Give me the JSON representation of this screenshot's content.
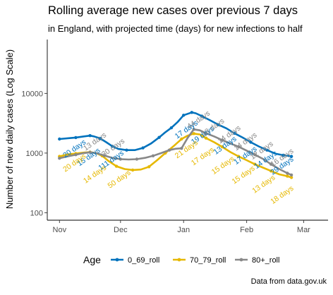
{
  "chart_data": {
    "type": "line",
    "title": "Rolling average new cases over previous 7 days",
    "subtitle": "in England, with projected time (days) for new infections to half",
    "ylabel": "Number of new daily cases (Log Scale)",
    "xlabel": "",
    "y_scale": "log",
    "ylim": [
      75,
      80000
    ],
    "y_ticks": [
      100,
      1000,
      10000
    ],
    "y_tick_labels": [
      "100",
      "1000",
      "10000"
    ],
    "x_ticks": [
      0,
      30,
      61,
      92,
      120
    ],
    "x_tick_labels": [
      "Nov",
      "Dec",
      "Jan",
      "Feb",
      "Mar"
    ],
    "xlim": [
      -6,
      132
    ],
    "grid": false,
    "legend": {
      "title": "Age",
      "position": "bottom"
    },
    "caption": "Data from data.gov.uk",
    "series": [
      {
        "name": "0_69_roll",
        "color": "#0072bd",
        "points": [
          {
            "x": 0,
            "y": 1720
          },
          {
            "x": 5,
            "y": 1780
          },
          {
            "x": 8,
            "y": 1820
          },
          {
            "x": 12,
            "y": 1900
          },
          {
            "x": 15,
            "y": 1960
          },
          {
            "x": 17,
            "y": 1900
          },
          {
            "x": 20,
            "y": 1760
          },
          {
            "x": 23,
            "y": 1520
          },
          {
            "x": 26,
            "y": 1300
          },
          {
            "x": 29,
            "y": 1170
          },
          {
            "x": 33,
            "y": 1120
          },
          {
            "x": 37,
            "y": 1120
          },
          {
            "x": 41,
            "y": 1220
          },
          {
            "x": 45,
            "y": 1450
          },
          {
            "x": 49,
            "y": 1830
          },
          {
            "x": 52,
            "y": 2230
          },
          {
            "x": 55,
            "y": 2650
          },
          {
            "x": 58,
            "y": 3300
          },
          {
            "x": 61,
            "y": 4300
          },
          {
            "x": 63,
            "y": 4550
          },
          {
            "x": 65,
            "y": 4800
          },
          {
            "x": 67,
            "y": 4650
          },
          {
            "x": 70,
            "y": 4150
          },
          {
            "x": 74,
            "y": 3550
          },
          {
            "x": 78,
            "y": 3000
          },
          {
            "x": 82,
            "y": 2600
          },
          {
            "x": 86,
            "y": 2150
          },
          {
            "x": 90,
            "y": 1820
          },
          {
            "x": 94,
            "y": 1520
          },
          {
            "x": 98,
            "y": 1290
          },
          {
            "x": 102,
            "y": 1120
          },
          {
            "x": 106,
            "y": 980
          },
          {
            "x": 110,
            "y": 920
          },
          {
            "x": 114,
            "y": 880
          }
        ],
        "labels": [
          {
            "x": 8,
            "y": 1100,
            "text": "20 days"
          },
          {
            "x": 15,
            "y": 800,
            "text": "15 days"
          },
          {
            "x": 26,
            "y": 700,
            "text": "111 days"
          },
          {
            "x": 63,
            "y": 2300,
            "text": "17 days"
          },
          {
            "x": 71,
            "y": 1850,
            "text": "19 days"
          },
          {
            "x": 82,
            "y": 1250,
            "text": "13 days"
          },
          {
            "x": 92,
            "y": 850,
            "text": "17 days"
          },
          {
            "x": 102,
            "y": 720,
            "text": "14 days"
          },
          {
            "x": 110,
            "y": 570,
            "text": "29 days"
          }
        ]
      },
      {
        "name": "70_79_roll",
        "color": "#e6b800",
        "points": [
          {
            "x": 0,
            "y": 880
          },
          {
            "x": 4,
            "y": 950
          },
          {
            "x": 8,
            "y": 980
          },
          {
            "x": 12,
            "y": 1020
          },
          {
            "x": 15,
            "y": 1040
          },
          {
            "x": 18,
            "y": 1000
          },
          {
            "x": 21,
            "y": 900
          },
          {
            "x": 24,
            "y": 740
          },
          {
            "x": 28,
            "y": 600
          },
          {
            "x": 32,
            "y": 540
          },
          {
            "x": 36,
            "y": 520
          },
          {
            "x": 40,
            "y": 530
          },
          {
            "x": 44,
            "y": 590
          },
          {
            "x": 48,
            "y": 760
          },
          {
            "x": 52,
            "y": 1000
          },
          {
            "x": 56,
            "y": 1300
          },
          {
            "x": 60,
            "y": 1720
          },
          {
            "x": 63,
            "y": 1960
          },
          {
            "x": 66,
            "y": 2120
          },
          {
            "x": 69,
            "y": 2050
          },
          {
            "x": 72,
            "y": 1780
          },
          {
            "x": 76,
            "y": 1520
          },
          {
            "x": 80,
            "y": 1270
          },
          {
            "x": 84,
            "y": 1040
          },
          {
            "x": 88,
            "y": 880
          },
          {
            "x": 92,
            "y": 760
          },
          {
            "x": 96,
            "y": 650
          },
          {
            "x": 100,
            "y": 570
          },
          {
            "x": 104,
            "y": 500
          },
          {
            "x": 108,
            "y": 440
          },
          {
            "x": 112,
            "y": 410
          },
          {
            "x": 114,
            "y": 390
          }
        ],
        "labels": [
          {
            "x": 8,
            "y": 640,
            "text": "20 days"
          },
          {
            "x": 18,
            "y": 410,
            "text": "14 days"
          },
          {
            "x": 30,
            "y": 340,
            "text": "50 days"
          },
          {
            "x": 63,
            "y": 1080,
            "text": "21 days"
          },
          {
            "x": 71,
            "y": 820,
            "text": "17 days"
          },
          {
            "x": 81,
            "y": 580,
            "text": "15 days"
          },
          {
            "x": 91,
            "y": 400,
            "text": "15 days"
          },
          {
            "x": 101,
            "y": 280,
            "text": "13 days"
          },
          {
            "x": 110,
            "y": 185,
            "text": "18 days"
          }
        ]
      },
      {
        "name": "80+_roll",
        "color": "#888888",
        "points": [
          {
            "x": 0,
            "y": 820
          },
          {
            "x": 4,
            "y": 880
          },
          {
            "x": 8,
            "y": 940
          },
          {
            "x": 12,
            "y": 1000
          },
          {
            "x": 15,
            "y": 1030
          },
          {
            "x": 18,
            "y": 1000
          },
          {
            "x": 22,
            "y": 910
          },
          {
            "x": 26,
            "y": 830
          },
          {
            "x": 30,
            "y": 790
          },
          {
            "x": 34,
            "y": 780
          },
          {
            "x": 38,
            "y": 790
          },
          {
            "x": 42,
            "y": 830
          },
          {
            "x": 46,
            "y": 900
          },
          {
            "x": 50,
            "y": 1000
          },
          {
            "x": 54,
            "y": 1120
          },
          {
            "x": 57,
            "y": 1180
          },
          {
            "x": 60,
            "y": 1200
          },
          {
            "x": 63,
            "y": 1800
          },
          {
            "x": 66,
            "y": 2500
          },
          {
            "x": 69,
            "y": 2400
          },
          {
            "x": 72,
            "y": 2150
          },
          {
            "x": 76,
            "y": 1900
          },
          {
            "x": 80,
            "y": 1650
          },
          {
            "x": 84,
            "y": 1450
          },
          {
            "x": 88,
            "y": 1280
          },
          {
            "x": 92,
            "y": 1100
          },
          {
            "x": 96,
            "y": 940
          },
          {
            "x": 100,
            "y": 800
          },
          {
            "x": 104,
            "y": 650
          },
          {
            "x": 108,
            "y": 540
          },
          {
            "x": 112,
            "y": 460
          },
          {
            "x": 114,
            "y": 430
          }
        ],
        "labels": [
          {
            "x": 18,
            "y": 1450,
            "text": "13 days"
          },
          {
            "x": 27,
            "y": 1150,
            "text": "30 days"
          },
          {
            "x": 69,
            "y": 3350,
            "text": "44 days"
          },
          {
            "x": 76,
            "y": 2500,
            "text": "18 days"
          },
          {
            "x": 84,
            "y": 1900,
            "text": "14 days"
          },
          {
            "x": 92,
            "y": 1450,
            "text": "14 days"
          },
          {
            "x": 100,
            "y": 1030,
            "text": "12 days"
          },
          {
            "x": 110,
            "y": 780,
            "text": "16 days"
          }
        ]
      }
    ]
  }
}
